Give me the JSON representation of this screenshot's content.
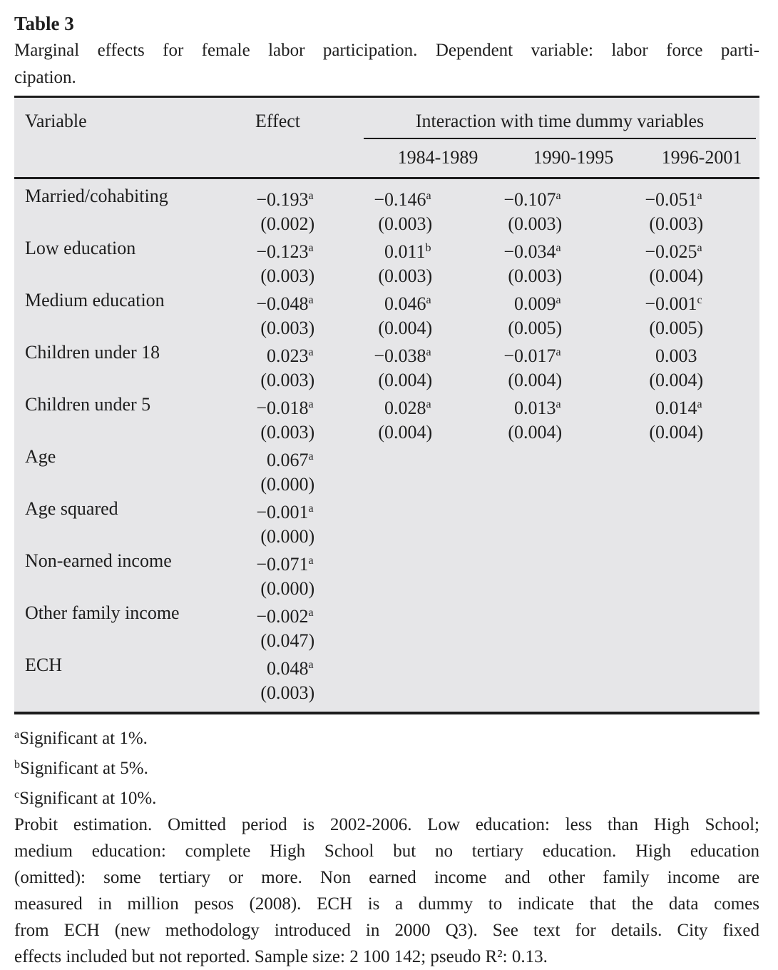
{
  "title": "Table 3",
  "caption_lines": [
    "Marginal effects for female labor participation. Dependent variable: labor force parti-",
    "cipation."
  ],
  "table": {
    "col_headers": {
      "variable": "Variable",
      "effect": "Effect",
      "interaction": "Interaction with time dummy variables"
    },
    "period_headers": [
      "1984-1989",
      "1990-1995",
      "1996-2001"
    ],
    "rows": [
      {
        "variable": "Married/cohabiting",
        "cells": [
          {
            "value": "−0.193",
            "flag": "a",
            "se": "0.002"
          },
          {
            "value": "−0.146",
            "flag": "a",
            "se": "0.003"
          },
          {
            "value": "−0.107",
            "flag": "a",
            "se": "0.003"
          },
          {
            "value": "−0.051",
            "flag": "a",
            "se": "0.003"
          }
        ]
      },
      {
        "variable": "Low education",
        "cells": [
          {
            "value": "−0.123",
            "flag": "a",
            "se": "0.003"
          },
          {
            "value": "0.011",
            "flag": "b",
            "se": "0.003"
          },
          {
            "value": "−0.034",
            "flag": "a",
            "se": "0.003"
          },
          {
            "value": "−0.025",
            "flag": "a",
            "se": "0.004"
          }
        ]
      },
      {
        "variable": "Medium education",
        "cells": [
          {
            "value": "−0.048",
            "flag": "a",
            "se": "0.003"
          },
          {
            "value": "0.046",
            "flag": "a",
            "se": "0.004"
          },
          {
            "value": "0.009",
            "flag": "a",
            "se": "0.005"
          },
          {
            "value": "−0.001",
            "flag": "c",
            "se": "0.005"
          }
        ]
      },
      {
        "variable": "Children under 18",
        "cells": [
          {
            "value": "0.023",
            "flag": "a",
            "se": "0.003"
          },
          {
            "value": "−0.038",
            "flag": "a",
            "se": "0.004"
          },
          {
            "value": "−0.017",
            "flag": "a",
            "se": "0.004"
          },
          {
            "value": "0.003",
            "flag": "",
            "se": "0.004"
          }
        ]
      },
      {
        "variable": "Children under 5",
        "cells": [
          {
            "value": "−0.018",
            "flag": "a",
            "se": "0.003"
          },
          {
            "value": "0.028",
            "flag": "a",
            "se": "0.004"
          },
          {
            "value": "0.013",
            "flag": "a",
            "se": "0.004"
          },
          {
            "value": "0.014",
            "flag": "a",
            "se": "0.004"
          }
        ]
      },
      {
        "variable": "Age",
        "cells": [
          {
            "value": "0.067",
            "flag": "a",
            "se": "0.000"
          },
          null,
          null,
          null
        ]
      },
      {
        "variable": "Age squared",
        "cells": [
          {
            "value": "−0.001",
            "flag": "a",
            "se": "0.000"
          },
          null,
          null,
          null
        ]
      },
      {
        "variable": "Non-earned income",
        "cells": [
          {
            "value": "−0.071",
            "flag": "a",
            "se": "0.000"
          },
          null,
          null,
          null
        ]
      },
      {
        "variable": "Other family income",
        "cells": [
          {
            "value": "−0.002",
            "flag": "a",
            "se": "0.047"
          },
          null,
          null,
          null
        ]
      },
      {
        "variable": "ECH",
        "cells": [
          {
            "value": "0.048",
            "flag": "a",
            "se": "0.003"
          },
          null,
          null,
          null
        ]
      }
    ]
  },
  "footnotes": [
    {
      "sup": "a",
      "text": "Significant at 1%."
    },
    {
      "sup": "b",
      "text": "Significant at 5%."
    },
    {
      "sup": "c",
      "text": "Significant at 10%."
    }
  ],
  "note_lines": [
    "Probit estimation. Omitted period is 2002-2006. Low education: less than High School;",
    "medium education: complete High School but no tertiary education. High education",
    "(omitted): some tertiary or more. Non earned income and other family income are",
    "measured in million pesos (2008). ECH is a dummy to indicate that the data comes",
    "from ECH (new methodology introduced in 2000 Q3). See text for details. City fixed",
    "effects included but not reported. Sample size: 2 100 142; pseudo R²: 0.13."
  ],
  "colors": {
    "table_bg": "#e6e6e8",
    "text": "#1e1e1e",
    "rule": "#1c1c1c"
  }
}
